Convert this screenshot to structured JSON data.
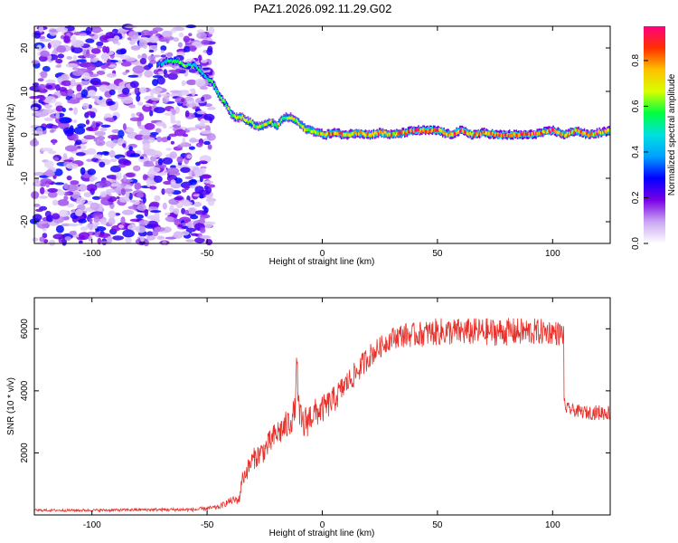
{
  "title": "PAZ1.2026.092.11.29.G02",
  "chart_data": [
    {
      "type": "heatmap",
      "title": "PAZ1.2026.092.11.29.G02",
      "xlabel": "Height of straight line (km)",
      "ylabel": "Frequency (Hz)",
      "xlim": [
        -125,
        125
      ],
      "ylim": [
        -25,
        25
      ],
      "x_ticks": [
        -100,
        -50,
        0,
        50,
        100
      ],
      "y_ticks": [
        -20,
        -10,
        0,
        10,
        20
      ],
      "x_tick_labels": [
        "-100",
        "-50",
        "0",
        "50",
        "100"
      ],
      "y_tick_labels": [
        "-20",
        "-10",
        "0",
        "10",
        "20"
      ],
      "colorbar": {
        "label": "Normalized spectral amplitude",
        "range": [
          0,
          0.95
        ],
        "ticks": [
          0.0,
          0.2,
          0.4,
          0.6,
          0.8
        ],
        "tick_labels": [
          "0.0",
          "0.2",
          "0.4",
          "0.6",
          "0.8"
        ],
        "colors": [
          "#ffffff",
          "#c9a6f2",
          "#7a00e6",
          "#0000ff",
          "#00a0ff",
          "#00e0e0",
          "#00ff40",
          "#d8ff00",
          "#ffc000",
          "#ff3000",
          "#ff0080"
        ]
      },
      "ridge": {
        "x": [
          -72,
          -68,
          -64,
          -60,
          -56,
          -52,
          -48,
          -45,
          -42,
          -40,
          -38,
          -35,
          -32,
          -29,
          -26,
          -23,
          -20,
          -17,
          -14,
          -11,
          -8,
          -5,
          -2,
          1,
          5,
          10,
          15,
          20,
          25,
          30,
          35,
          40,
          45,
          50,
          55,
          60,
          65,
          70,
          75,
          80,
          85,
          90,
          95,
          100,
          105,
          110,
          115,
          120,
          125
        ],
        "y": [
          16,
          17,
          17,
          16,
          16,
          14,
          12,
          9,
          7,
          5,
          4,
          4,
          3,
          2,
          2,
          3,
          2,
          4,
          4,
          3,
          1.5,
          1,
          0.5,
          0,
          0.5,
          0,
          0.5,
          0,
          0.5,
          0,
          0.5,
          1,
          1,
          1,
          0,
          1,
          0,
          0.5,
          0,
          0,
          0,
          0,
          0.5,
          1,
          0,
          1,
          0,
          0.5,
          1
        ],
        "amplitude": [
          0.4,
          0.5,
          0.6,
          0.6,
          0.55,
          0.5,
          0.55,
          0.6,
          0.62,
          0.64,
          0.66,
          0.7,
          0.66,
          0.68,
          0.7,
          0.66,
          0.68,
          0.66,
          0.7,
          0.7,
          0.72,
          0.75,
          0.78,
          0.82,
          0.85,
          0.84,
          0.8,
          0.85,
          0.82,
          0.8,
          0.84,
          0.9,
          0.94,
          0.92,
          0.84,
          0.9,
          0.86,
          0.88,
          0.92,
          0.94,
          0.9,
          0.92,
          0.84,
          0.9,
          0.8,
          0.84,
          0.84,
          0.86,
          0.8
        ]
      },
      "noise_region": {
        "x_range": [
          -125,
          -48
        ],
        "y_range": [
          -25,
          25
        ],
        "amplitude_range": [
          0.05,
          0.3
        ]
      }
    },
    {
      "type": "line",
      "xlabel": "Height of straight line (km)",
      "ylabel": "SNR (10 * v/v)",
      "xlim": [
        -125,
        125
      ],
      "ylim": [
        0,
        7000
      ],
      "x_ticks": [
        -100,
        -50,
        0,
        50,
        100
      ],
      "y_ticks": [
        2000,
        4000,
        6000
      ],
      "x_tick_labels": [
        "-100",
        "-50",
        "0",
        "50",
        "100"
      ],
      "y_tick_labels": [
        "2000",
        "4000",
        "6000"
      ],
      "series": [
        {
          "name": "SNR",
          "color": "#e8302a",
          "x": [
            -125,
            -100,
            -75,
            -55,
            -45,
            -40,
            -36,
            -35,
            -33,
            -30,
            -25,
            -20,
            -15,
            -12,
            -11,
            -10,
            -8,
            -5,
            0,
            5,
            10,
            15,
            20,
            25,
            30,
            35,
            40,
            50,
            60,
            70,
            80,
            90,
            100,
            105,
            105.5,
            110,
            115,
            120,
            125
          ],
          "y": [
            150,
            150,
            170,
            170,
            250,
            450,
            500,
            1100,
            1400,
            1800,
            2100,
            2600,
            2900,
            3300,
            4900,
            3100,
            2900,
            3200,
            3400,
            3700,
            4200,
            4600,
            5100,
            5400,
            5700,
            5800,
            5800,
            5900,
            5900,
            5900,
            5900,
            5900,
            5900,
            5800,
            3450,
            3350,
            3300,
            3300,
            3300
          ],
          "noise_amplitude": [
            40,
            40,
            50,
            60,
            80,
            120,
            150,
            250,
            300,
            350,
            400,
            450,
            500,
            500,
            500,
            550,
            600,
            500,
            450,
            450,
            400,
            400,
            400,
            350,
            350,
            400,
            400,
            450,
            450,
            450,
            450,
            450,
            400,
            400,
            200,
            200,
            220,
            250,
            250
          ]
        }
      ]
    }
  ]
}
